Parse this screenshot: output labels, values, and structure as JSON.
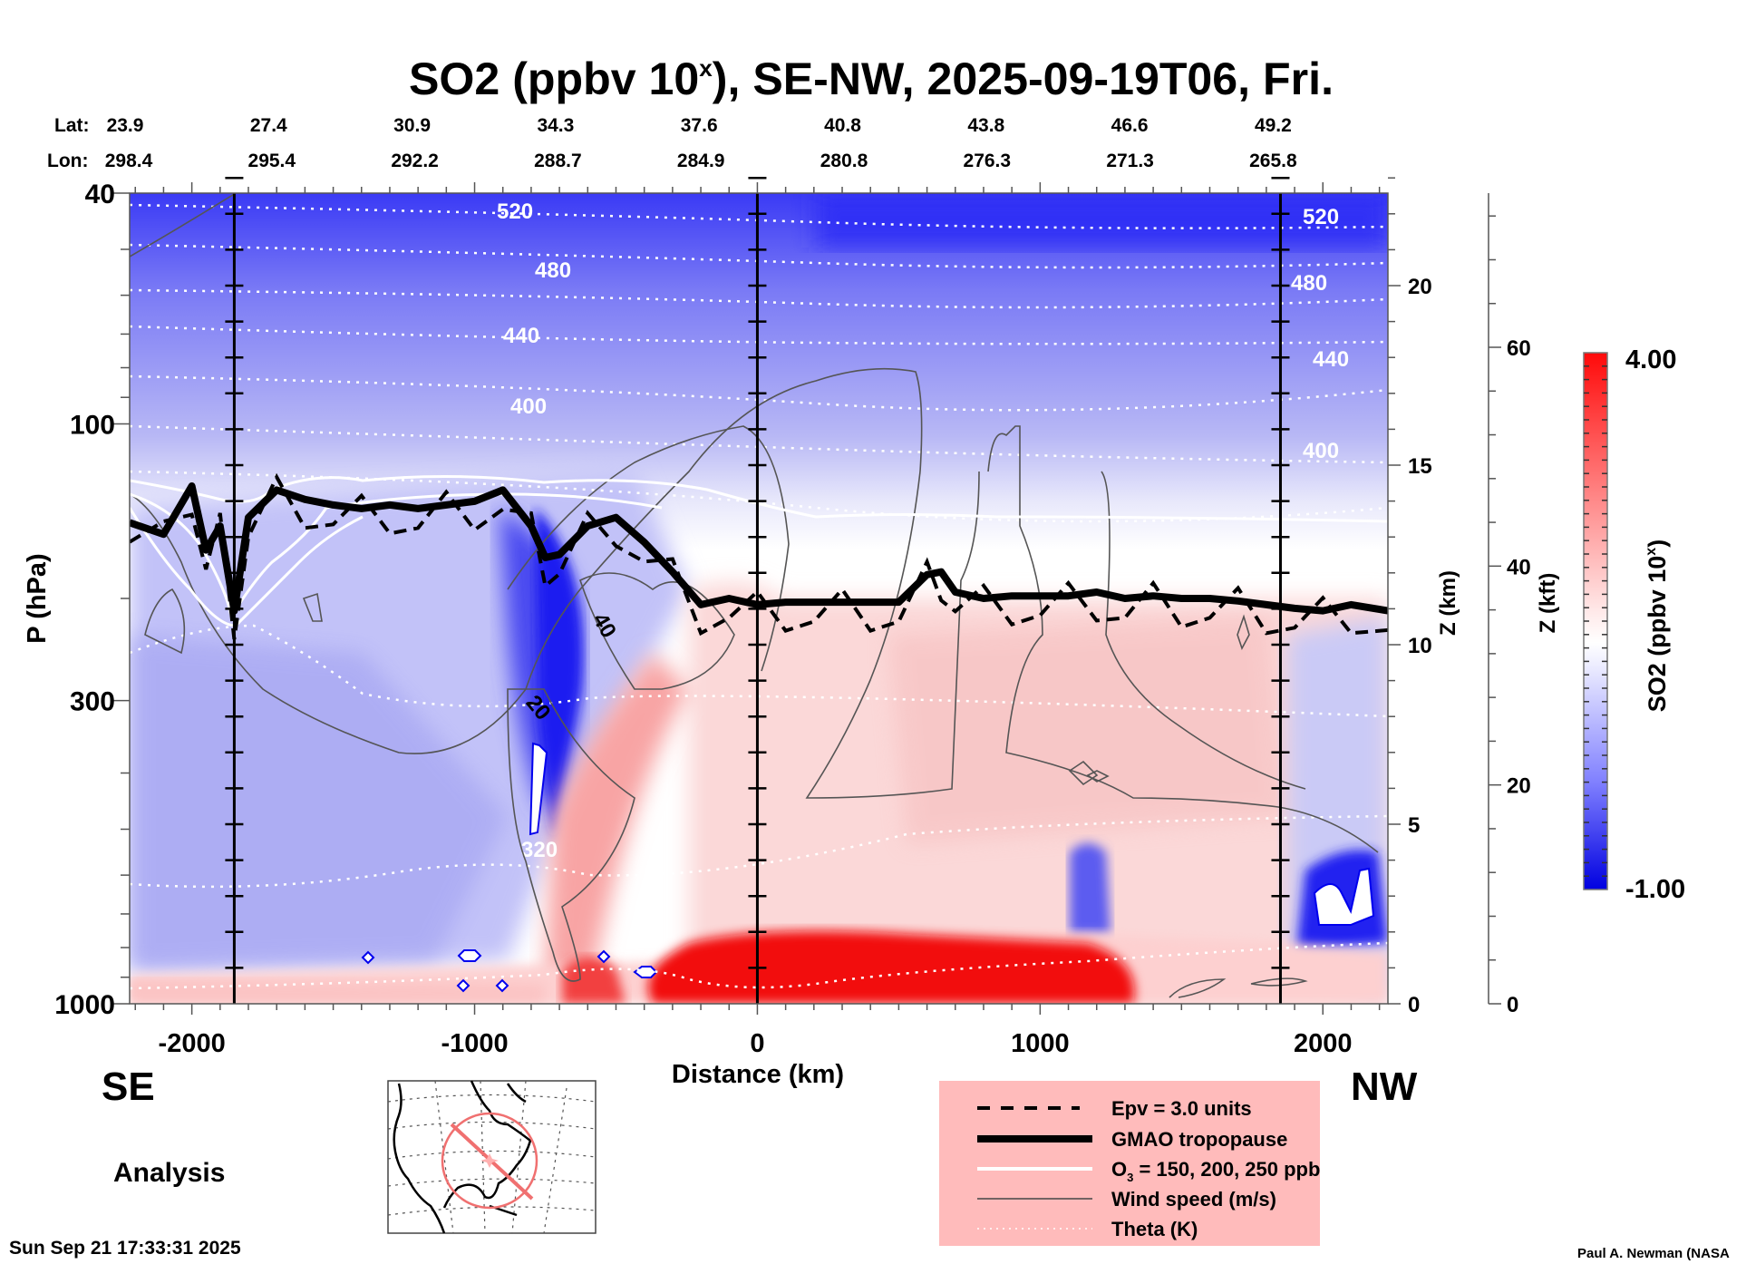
{
  "chart_data": {
    "type": "heatmap",
    "title": "SO2 (ppbv 10",
    "title_sup": "x",
    "title_rest": "), SE-NW, 2025-09-19T06, Fri.",
    "xlabel": "Distance (km)",
    "ylabel": "P (hPa)",
    "xlim": [
      -2220,
      2230
    ],
    "ylim": [
      1000,
      40
    ],
    "yscale": "log",
    "x_ticks": [
      -2000,
      -1000,
      0,
      1000,
      2000
    ],
    "x_tick_labels": [
      "-2000",
      "-1000",
      "0",
      "1000",
      "2000"
    ],
    "y_ticks": [
      40,
      100,
      300,
      1000
    ],
    "y_tick_labels": [
      "40",
      "100",
      "300",
      "1000"
    ],
    "z_km_axis": {
      "label": "Z (km)",
      "ticks": [
        0,
        5,
        10,
        15,
        20
      ],
      "tick_labels": [
        "0",
        "5",
        "10",
        "15",
        "20"
      ]
    },
    "z_kft_axis": {
      "label": "Z (kft)",
      "ticks": [
        0,
        20,
        40,
        60
      ],
      "tick_labels": [
        "0",
        "20",
        "40",
        "60"
      ]
    },
    "lat_row": {
      "label": "Lat:",
      "values": [
        "23.9",
        "27.4",
        "30.9",
        "34.3",
        "37.6",
        "40.8",
        "43.8",
        "46.6",
        "49.2"
      ]
    },
    "lon_row": {
      "label": "Lon:",
      "values": [
        "298.4",
        "295.4",
        "292.2",
        "288.7",
        "284.9",
        "280.8",
        "276.3",
        "271.3",
        "265.8"
      ]
    },
    "vertical_markers_km": [
      -1850,
      0,
      1850
    ],
    "colorbar": {
      "label": "SO2 (ppbv 10",
      "label_sup": "x",
      "label_end": ")",
      "min": -1.0,
      "max": 4.0,
      "min_label": "-1.00",
      "max_label": "4.00",
      "levels": 40,
      "low_color": "#0000ff",
      "mid_color": "#ffffff",
      "high_color": "#ff0000"
    },
    "theta_contours_K": [
      {
        "value": 520,
        "label": "520"
      },
      {
        "value": 480,
        "label": "480"
      },
      {
        "value": 440,
        "label": "440"
      },
      {
        "value": 400,
        "label": "400"
      },
      {
        "value": 320,
        "label": "320"
      }
    ],
    "wind_contour_labels": [
      "40",
      "20"
    ],
    "tropopause_hPa": {
      "x": [
        -2220,
        -2100,
        -2000,
        -1950,
        -1900,
        -1850,
        -1800,
        -1700,
        -1600,
        -1500,
        -1400,
        -1300,
        -1200,
        -1100,
        -1000,
        -900,
        -800,
        -750,
        -700,
        -600,
        -500,
        -400,
        -300,
        -200,
        -100,
        0,
        100,
        200,
        300,
        400,
        500,
        600,
        650,
        700,
        800,
        900,
        1000,
        1100,
        1200,
        1300,
        1400,
        1500,
        1600,
        1700,
        1800,
        1900,
        2000,
        2100,
        2230
      ],
      "p": [
        148,
        155,
        128,
        165,
        150,
        210,
        145,
        130,
        135,
        138,
        140,
        138,
        140,
        138,
        136,
        130,
        150,
        170,
        168,
        150,
        145,
        160,
        180,
        205,
        200,
        205,
        203,
        203,
        203,
        203,
        203,
        182,
        180,
        195,
        200,
        198,
        198,
        198,
        195,
        200,
        198,
        200,
        200,
        202,
        205,
        208,
        210,
        205,
        210
      ]
    },
    "series_notes": [
      "Epv = 3.0 units",
      "GMAO tropopause",
      "O3 = 150, 200, 250 ppb",
      "Wind speed (m/s)",
      "Theta (K)"
    ]
  },
  "labels": {
    "se": "SE",
    "nw": "NW",
    "analysis": "Analysis",
    "timestamp": "Sun Sep 21 17:33:31 2025",
    "credit": "Paul A. Newman (NASA"
  },
  "legend": {
    "items": [
      {
        "label": "Epv = 3.0 units",
        "style": "dashed"
      },
      {
        "label": "GMAO tropopause",
        "style": "thick"
      },
      {
        "label_pre": "O",
        "label_sub": "3",
        "label_post": " = 150, 200, 250 ppb",
        "style": "white"
      },
      {
        "label": "Wind speed (m/s)",
        "style": "thin"
      },
      {
        "label": "Theta (K)",
        "style": "dotted"
      }
    ],
    "background": "#ffbbbb"
  }
}
